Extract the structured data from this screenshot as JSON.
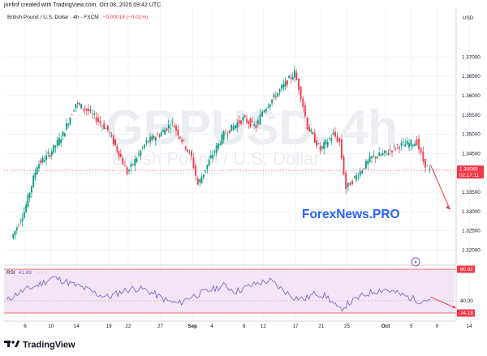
{
  "header": {
    "caption": "jonfinf created with TradingView.com, Oct 08, 2025 09:42 UTC",
    "instrument": "British Pound / U.S. Dollar · 4h · FXCM",
    "change": "−0.00018 (−0.01%)"
  },
  "watermark": {
    "ticker": "GBPUSD, 4h",
    "name": "British Pound / U.S. Dollar"
  },
  "overlay_text": "ForexNews.PRO",
  "price_axis": {
    "currency": "USD",
    "last_price": "1.34065",
    "countdown": "02:17:11",
    "ticks": [
      "1.37000",
      "1.36500",
      "1.36000",
      "1.35500",
      "1.35000",
      "1.34500",
      "1.34000",
      "1.33500",
      "1.33000",
      "1.32500",
      "1.32000"
    ]
  },
  "rsi": {
    "label": "RSI",
    "value": "41.89",
    "overbought_label": "80.82",
    "level_label": "40.00",
    "oversold_label": "24.18"
  },
  "time_axis": {
    "ticks": [
      "6",
      "10",
      "14",
      "19",
      "22",
      "27",
      "Sep",
      "4",
      "9",
      "12",
      "17",
      "21",
      "25",
      "Oct",
      "5",
      "9",
      "14"
    ]
  },
  "brand": {
    "name": "TradingView"
  },
  "colors": {
    "up": "#089981",
    "down": "#f23645",
    "rsi": "#7e57c2",
    "rsi_band": "#f3e5f5",
    "arrow": "#f23645",
    "overlay_text": "#2962ff"
  },
  "icons": {
    "replay": "lightning-circle-icon"
  },
  "chart_data": {
    "type": "candlestick",
    "timeframe": "4h",
    "price_range": [
      1.3165,
      1.3785
    ],
    "series": [
      {
        "name": "GBPUSD",
        "points": [
          {
            "x": "Aug 4",
            "close": 1.323
          },
          {
            "x": "Aug 6",
            "close": 1.33
          },
          {
            "x": "Aug 8",
            "close": 1.342
          },
          {
            "x": "Aug 10",
            "close": 1.345
          },
          {
            "x": "Aug 12",
            "close": 1.35
          },
          {
            "x": "Aug 14",
            "close": 1.358
          },
          {
            "x": "Aug 16",
            "close": 1.356
          },
          {
            "x": "Aug 19",
            "close": 1.351
          },
          {
            "x": "Aug 21",
            "close": 1.344
          },
          {
            "x": "Aug 22",
            "close": 1.34
          },
          {
            "x": "Aug 25",
            "close": 1.348
          },
          {
            "x": "Aug 27",
            "close": 1.35
          },
          {
            "x": "Aug 29",
            "close": 1.353
          },
          {
            "x": "Sep 1",
            "close": 1.344
          },
          {
            "x": "Sep 2",
            "close": 1.337
          },
          {
            "x": "Sep 4",
            "close": 1.344
          },
          {
            "x": "Sep 6",
            "close": 1.35
          },
          {
            "x": "Sep 9",
            "close": 1.354
          },
          {
            "x": "Sep 11",
            "close": 1.352
          },
          {
            "x": "Sep 12",
            "close": 1.356
          },
          {
            "x": "Sep 15",
            "close": 1.362
          },
          {
            "x": "Sep 17",
            "close": 1.366
          },
          {
            "x": "Sep 18",
            "close": 1.36
          },
          {
            "x": "Sep 19",
            "close": 1.352
          },
          {
            "x": "Sep 21",
            "close": 1.346
          },
          {
            "x": "Sep 23",
            "close": 1.35
          },
          {
            "x": "Sep 24",
            "close": 1.348
          },
          {
            "x": "Sep 25",
            "close": 1.336
          },
          {
            "x": "Sep 26",
            "close": 1.338
          },
          {
            "x": "Sep 29",
            "close": 1.344
          },
          {
            "x": "Oct 1",
            "close": 1.345
          },
          {
            "x": "Oct 3",
            "close": 1.347
          },
          {
            "x": "Oct 6",
            "close": 1.348
          },
          {
            "x": "Oct 7",
            "close": 1.343
          },
          {
            "x": "Oct 8",
            "close": 1.34065
          }
        ]
      }
    ],
    "projection": {
      "from": {
        "x": "Oct 8",
        "y": 1.342
      },
      "to": {
        "x": "Oct 10",
        "y": 1.3305
      }
    },
    "rsi": {
      "period": 14,
      "last": 41.89,
      "levels": [
        24.18,
        40.0,
        80.82
      ],
      "values": [
        40,
        50,
        56,
        62,
        70,
        66,
        60,
        55,
        48,
        45,
        52,
        56,
        55,
        48,
        40,
        36,
        45,
        50,
        55,
        60,
        52,
        58,
        63,
        66,
        55,
        45,
        42,
        50,
        45,
        28,
        38,
        46,
        52,
        55,
        50,
        45,
        40,
        41.89
      ],
      "projection": {
        "from": 45,
        "to": 30
      }
    },
    "grid": true,
    "legend": "top-left"
  }
}
